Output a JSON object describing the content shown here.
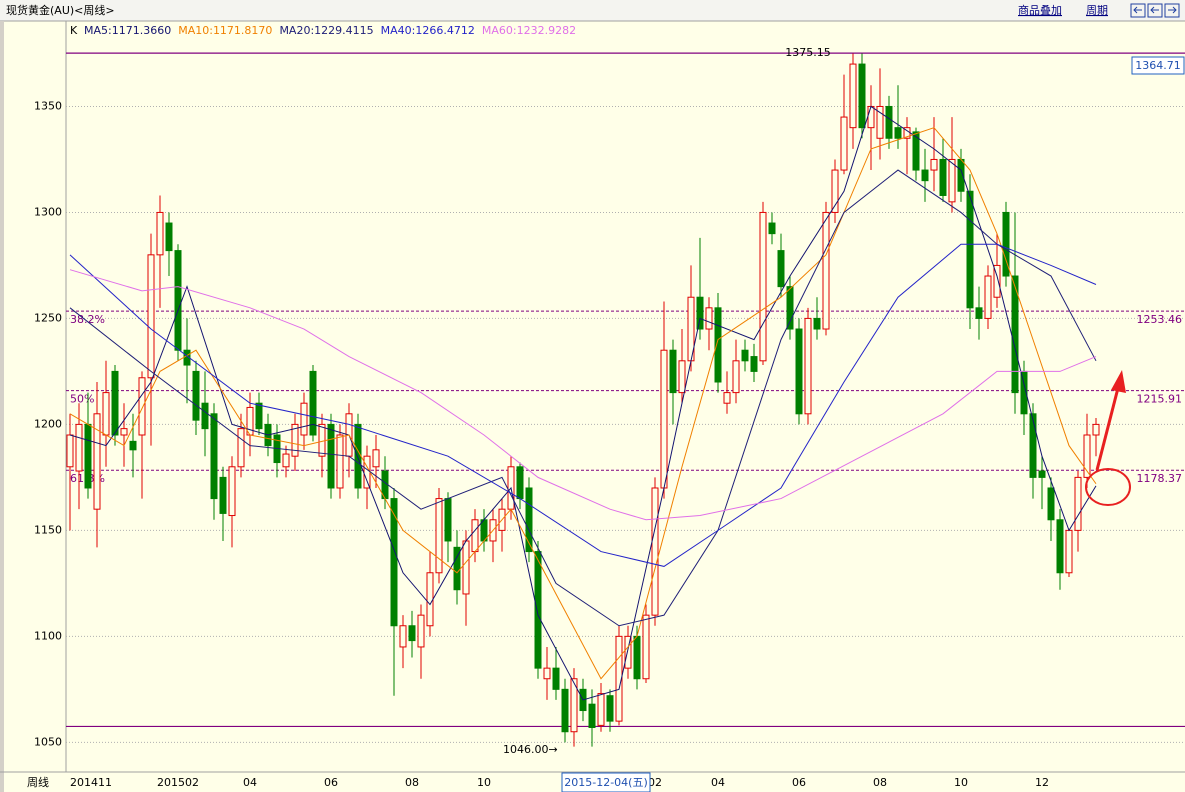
{
  "chart_data": {
    "type": "candlestick",
    "title": "现货黄金(AU)<周线>",
    "buttons": [
      "商品叠加",
      "周期"
    ],
    "price_box": "1364.71",
    "x_axis_label": "周线",
    "cursor_label": "2015-12-04(五)",
    "ylim": [
      1036,
      1379
    ],
    "yticks": [
      1050,
      1100,
      1150,
      1200,
      1250,
      1300,
      1350
    ],
    "grid": true,
    "high": 1375.15,
    "high_label": "1375.15",
    "low_label": "1046.00→",
    "support_line": 1057.5,
    "fib_levels": [
      {
        "label": "38.2%",
        "value": 1253.46
      },
      {
        "label": "50%",
        "value": 1215.91
      },
      {
        "label": "61.8%",
        "value": 1178.37
      }
    ],
    "categories": [
      "201411",
      null,
      null,
      null,
      null,
      null,
      null,
      null,
      null,
      null,
      null,
      null,
      "201502",
      null,
      null,
      null,
      null,
      null,
      null,
      null,
      "04",
      null,
      null,
      null,
      null,
      null,
      null,
      null,
      null,
      "06",
      null,
      null,
      null,
      null,
      null,
      null,
      null,
      null,
      "08",
      null,
      null,
      null,
      null,
      null,
      null,
      null,
      "10",
      null,
      null,
      null,
      null,
      null,
      null,
      null,
      null,
      null,
      null,
      null,
      null,
      null,
      null,
      null,
      null,
      null,
      null,
      "02",
      null,
      null,
      null,
      null,
      null,
      null,
      "04",
      null,
      null,
      null,
      null,
      null,
      null,
      null,
      null,
      "06",
      null,
      null,
      null,
      null,
      null,
      null,
      null,
      null,
      "08",
      null,
      null,
      null,
      null,
      null,
      null,
      null,
      null,
      "10",
      null,
      null,
      null,
      null,
      null,
      null,
      null,
      null,
      "12",
      null,
      null,
      null,
      null,
      null,
      null
    ],
    "candles": {
      "name": "K",
      "up_color": "#e00000",
      "down_color": "#008000",
      "open": [
        1180,
        1178,
        1200,
        1160,
        1195,
        1225,
        1195,
        1192,
        1195,
        1222,
        1280,
        1295,
        1282,
        1235,
        1225,
        1210,
        1205,
        1175,
        1157,
        1180,
        1195,
        1210,
        1200,
        1195,
        1180,
        1185,
        1195,
        1225,
        1185,
        1200,
        1170,
        1185,
        1200,
        1170,
        1180,
        1178,
        1165,
        1095,
        1105,
        1095,
        1105,
        1130,
        1165,
        1142,
        1120,
        1140,
        1155,
        1145,
        1150,
        1160,
        1180,
        1170,
        1140,
        1080,
        1085,
        1075,
        1055,
        1075,
        1068,
        1058,
        1072,
        1060,
        1085,
        1100,
        1080,
        1110,
        1170,
        1235,
        1215,
        1230,
        1260,
        1245,
        1255,
        1210,
        1215,
        1235,
        1232,
        1230,
        1295,
        1282,
        1265,
        1245,
        1205,
        1250,
        1245,
        1300,
        1320,
        1340,
        1370,
        1340,
        1335,
        1350,
        1340,
        1335,
        1338,
        1320,
        1320,
        1325,
        1305,
        1325,
        1310,
        1255,
        1250,
        1260,
        1300,
        1270,
        1225,
        1205,
        1178,
        1170,
        1155,
        1130,
        1150,
        1175,
        1195
      ],
      "high": [
        1205,
        1210,
        1215,
        1220,
        1230,
        1228,
        1210,
        1205,
        1225,
        1290,
        1308,
        1300,
        1285,
        1250,
        1230,
        1225,
        1210,
        1180,
        1185,
        1205,
        1215,
        1215,
        1205,
        1200,
        1190,
        1205,
        1215,
        1228,
        1205,
        1205,
        1200,
        1210,
        1205,
        1190,
        1195,
        1185,
        1170,
        1110,
        1112,
        1115,
        1140,
        1170,
        1168,
        1150,
        1150,
        1160,
        1160,
        1160,
        1165,
        1185,
        1182,
        1175,
        1145,
        1095,
        1095,
        1080,
        1085,
        1080,
        1075,
        1078,
        1075,
        1105,
        1105,
        1105,
        1115,
        1175,
        1258,
        1240,
        1245,
        1275,
        1288,
        1260,
        1262,
        1225,
        1240,
        1240,
        1238,
        1305,
        1300,
        1290,
        1270,
        1250,
        1255,
        1260,
        1305,
        1325,
        1365,
        1375,
        1375,
        1360,
        1368,
        1355,
        1360,
        1345,
        1340,
        1330,
        1345,
        1335,
        1345,
        1330,
        1318,
        1265,
        1275,
        1290,
        1305,
        1300,
        1230,
        1210,
        1185,
        1175,
        1160,
        1150,
        1178,
        1205,
        1203
      ],
      "low": [
        1150,
        1160,
        1165,
        1142,
        1180,
        1190,
        1180,
        1175,
        1165,
        1190,
        1255,
        1270,
        1230,
        1210,
        1195,
        1185,
        1155,
        1145,
        1142,
        1175,
        1185,
        1195,
        1185,
        1175,
        1175,
        1178,
        1188,
        1192,
        1175,
        1165,
        1165,
        1175,
        1165,
        1160,
        1170,
        1160,
        1072,
        1085,
        1090,
        1080,
        1100,
        1125,
        1135,
        1115,
        1105,
        1135,
        1140,
        1135,
        1140,
        1155,
        1160,
        1135,
        1080,
        1070,
        1070,
        1050,
        1048,
        1060,
        1048,
        1055,
        1055,
        1058,
        1080,
        1075,
        1078,
        1105,
        1165,
        1200,
        1210,
        1225,
        1240,
        1235,
        1215,
        1205,
        1210,
        1225,
        1220,
        1228,
        1285,
        1260,
        1240,
        1200,
        1200,
        1240,
        1242,
        1295,
        1318,
        1330,
        1335,
        1320,
        1325,
        1330,
        1330,
        1318,
        1315,
        1305,
        1310,
        1305,
        1300,
        1305,
        1245,
        1240,
        1245,
        1255,
        1265,
        1205,
        1195,
        1165,
        1160,
        1145,
        1122,
        1128,
        1140,
        1170,
        1185
      ],
      "close": [
        1195,
        1200,
        1170,
        1205,
        1215,
        1195,
        1198,
        1188,
        1222,
        1280,
        1300,
        1282,
        1235,
        1228,
        1202,
        1198,
        1165,
        1158,
        1180,
        1198,
        1208,
        1198,
        1190,
        1182,
        1186,
        1200,
        1210,
        1195,
        1200,
        1170,
        1195,
        1205,
        1170,
        1185,
        1188,
        1165,
        1105,
        1105,
        1098,
        1110,
        1130,
        1165,
        1145,
        1122,
        1145,
        1155,
        1145,
        1155,
        1160,
        1180,
        1165,
        1140,
        1085,
        1085,
        1075,
        1055,
        1080,
        1065,
        1057,
        1073,
        1060,
        1100,
        1100,
        1080,
        1110,
        1170,
        1235,
        1215,
        1230,
        1260,
        1245,
        1255,
        1220,
        1215,
        1230,
        1230,
        1225,
        1300,
        1290,
        1265,
        1245,
        1205,
        1250,
        1245,
        1300,
        1320,
        1345,
        1370,
        1340,
        1350,
        1350,
        1335,
        1335,
        1340,
        1320,
        1315,
        1325,
        1308,
        1325,
        1310,
        1255,
        1250,
        1270,
        1275,
        1270,
        1215,
        1205,
        1175,
        1175,
        1155,
        1130,
        1150,
        1175,
        1195,
        1200
      ]
    },
    "series": [
      {
        "name": "MA5:1171.3660",
        "color": "#141470",
        "x": [
          0,
          4,
          9,
          13,
          18,
          22,
          27,
          31,
          37,
          40,
          44,
          49,
          52,
          57,
          61,
          66,
          70,
          76,
          80,
          86,
          89,
          96,
          99,
          103,
          108,
          111,
          114
        ],
        "values": [
          1195,
          1190,
          1220,
          1265,
          1200,
          1195,
          1200,
          1195,
          1130,
          1115,
          1145,
          1170,
          1110,
          1070,
          1075,
          1170,
          1250,
          1240,
          1270,
          1310,
          1350,
          1330,
          1320,
          1270,
          1185,
          1150,
          1171
        ]
      },
      {
        "name": "MA10:1171.8170",
        "color": "#f08000",
        "x": [
          0,
          6,
          10,
          14,
          20,
          26,
          31,
          37,
          43,
          49,
          54,
          59,
          63,
          68,
          72,
          79,
          84,
          89,
          96,
          100,
          103,
          107,
          111,
          114
        ],
        "values": [
          1205,
          1190,
          1225,
          1235,
          1195,
          1190,
          1195,
          1150,
          1130,
          1160,
          1120,
          1080,
          1100,
          1180,
          1240,
          1260,
          1280,
          1330,
          1340,
          1320,
          1290,
          1240,
          1190,
          1172
        ]
      },
      {
        "name": "MA20:1229.4115",
        "color": "#202078",
        "x": [
          0,
          9,
          20,
          31,
          39,
          48,
          54,
          61,
          66,
          72,
          79,
          86,
          92,
          99,
          103,
          109,
          114
        ],
        "values": [
          1255,
          1225,
          1190,
          1185,
          1160,
          1175,
          1125,
          1105,
          1110,
          1150,
          1240,
          1300,
          1320,
          1300,
          1285,
          1270,
          1230
        ]
      },
      {
        "name": "MA40:1266.4712",
        "color": "#2424c8",
        "x": [
          0,
          9,
          20,
          31,
          42,
          50,
          59,
          66,
          72,
          79,
          86,
          92,
          99,
          103,
          109,
          114
        ],
        "values": [
          1280,
          1245,
          1210,
          1200,
          1185,
          1165,
          1140,
          1133,
          1150,
          1170,
          1220,
          1260,
          1285,
          1285,
          1275,
          1266
        ]
      },
      {
        "name": "MA60:1232.9282",
        "color": "#e070e8",
        "x": [
          0,
          8,
          12,
          20,
          26,
          31,
          39,
          46,
          52,
          60,
          64,
          70,
          79,
          88,
          97,
          103,
          110,
          114
        ],
        "values": [
          1273,
          1263,
          1265,
          1255,
          1245,
          1232,
          1215,
          1195,
          1175,
          1160,
          1155,
          1157,
          1165,
          1185,
          1205,
          1225,
          1225,
          1232
        ]
      }
    ]
  }
}
